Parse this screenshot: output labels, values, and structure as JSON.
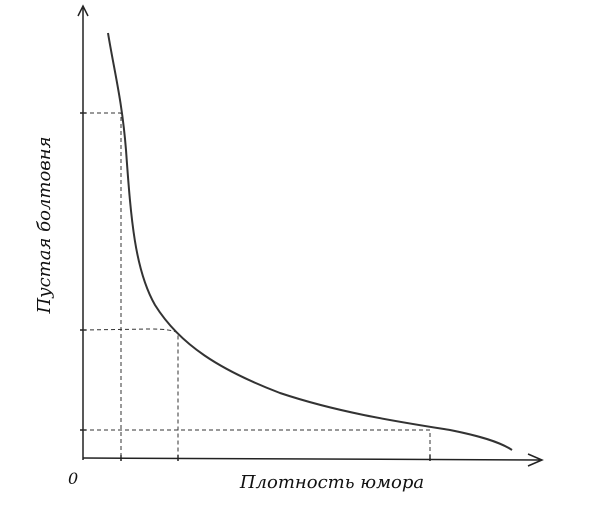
{
  "origin_label": "0",
  "x_axis": {
    "label": "Плотность юмора"
  },
  "y_axis": {
    "label": "Пустая болтовня"
  }
}
